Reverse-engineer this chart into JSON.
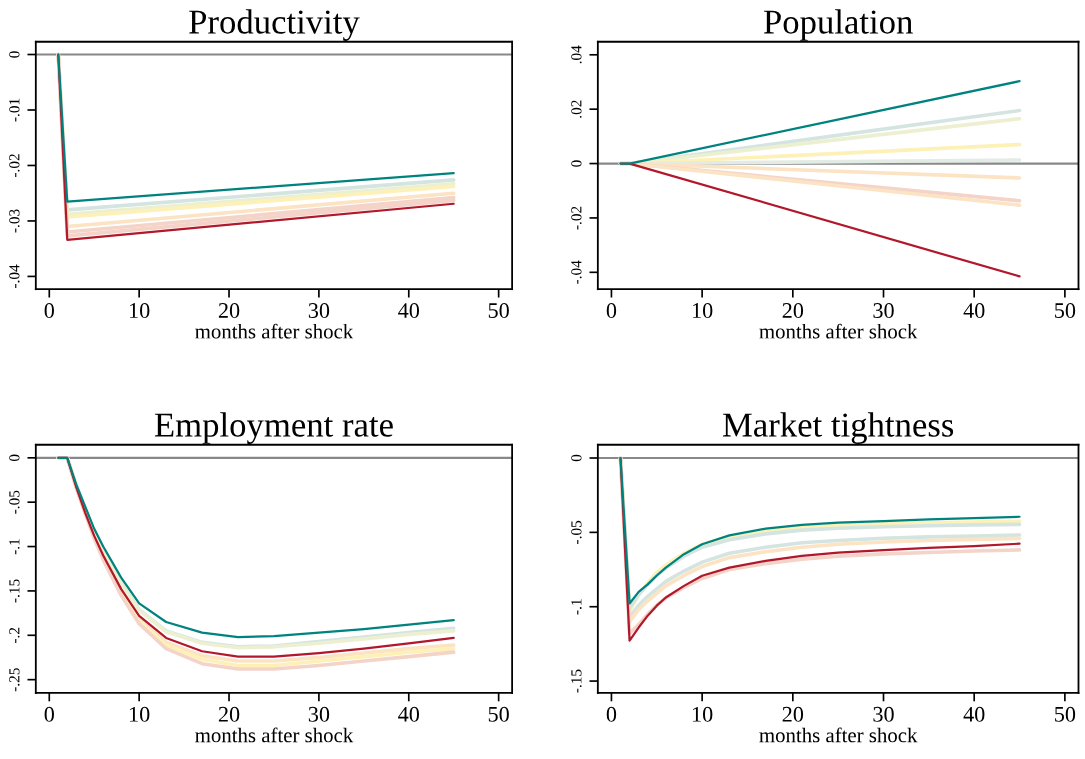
{
  "chart_data": [
    {
      "type": "line",
      "title": "Productivity",
      "xlabel": "months after shock",
      "xlim": [
        -1.5,
        51.5
      ],
      "xticks": [
        0,
        10,
        20,
        30,
        40,
        50
      ],
      "ylim": [
        -0.0423,
        0.0023
      ],
      "yticks": [
        0,
        {
          "value": -0.01,
          "label": "-.01"
        },
        {
          "value": -0.02,
          "label": "-.02"
        },
        {
          "value": -0.03,
          "label": "-.03"
        },
        {
          "value": -0.04,
          "label": "-.04"
        }
      ],
      "ref_lines": [
        {
          "axis": "y",
          "value": 0,
          "label": null,
          "color": "#888888"
        }
      ],
      "series": [
        {
          "color": "#d4e4e0",
          "x": [
            1,
            2,
            45
          ],
          "values": [
            0,
            -0.028,
            -0.0226
          ]
        },
        {
          "color": "#edf0d0",
          "x": [
            1,
            2,
            45
          ],
          "values": [
            0,
            -0.0288,
            -0.0233
          ]
        },
        {
          "color": "#fdf1b8",
          "x": [
            1,
            2,
            45
          ],
          "values": [
            0,
            -0.0293,
            -0.0238
          ]
        },
        {
          "color": "#fbe3c3",
          "x": [
            1,
            2,
            45
          ],
          "values": [
            0,
            -0.031,
            -0.025
          ]
        },
        {
          "color": "#f4d3c8",
          "x": [
            1,
            2,
            45
          ],
          "values": [
            0,
            -0.032,
            -0.0258
          ]
        },
        {
          "color": "#f4d3c8",
          "x": [
            1,
            2,
            45
          ],
          "values": [
            0,
            -0.0327,
            -0.0263
          ]
        },
        {
          "color": "#b2182b",
          "x": [
            1,
            2,
            45
          ],
          "values": [
            0,
            -0.0334,
            -0.0269
          ]
        },
        {
          "color": "#00837f",
          "x": [
            1,
            2,
            45
          ],
          "values": [
            0,
            -0.0265,
            -0.0214
          ]
        }
      ]
    },
    {
      "type": "line",
      "title": "Population",
      "xlabel": "months after shock",
      "xlim": [
        -1.5,
        51.5
      ],
      "xticks": [
        0,
        10,
        20,
        30,
        40,
        50
      ],
      "ylim": [
        -0.0462,
        0.0448
      ],
      "yticks": [
        {
          "value": -0.04,
          "label": "-.04"
        },
        {
          "value": -0.02,
          "label": "-.02"
        },
        0,
        {
          "value": 0.02,
          "label": ".02"
        },
        {
          "value": 0.04,
          "label": ".04"
        }
      ],
      "ref_lines": [
        {
          "axis": "y",
          "value": 0,
          "label": null,
          "color": "#888888"
        }
      ],
      "series": [
        {
          "color": "#d4e4e0",
          "x": [
            1,
            2,
            45
          ],
          "values": [
            0,
            0,
            0.0195
          ]
        },
        {
          "color": "#edf0d0",
          "x": [
            1,
            2,
            45
          ],
          "values": [
            0,
            0,
            0.0165
          ]
        },
        {
          "color": "#fdf1b8",
          "x": [
            1,
            2,
            45
          ],
          "values": [
            0,
            0,
            0.007
          ]
        },
        {
          "color": "#e3ece4",
          "x": [
            1,
            2,
            45
          ],
          "values": [
            0,
            0,
            0.0013
          ]
        },
        {
          "color": "#fbe3c3",
          "x": [
            1,
            2,
            45
          ],
          "values": [
            0,
            0,
            -0.0053
          ]
        },
        {
          "color": "#f4d3c8",
          "x": [
            1,
            2,
            45
          ],
          "values": [
            0,
            0,
            -0.0137
          ]
        },
        {
          "color": "#fbe3c3",
          "x": [
            1,
            2,
            45
          ],
          "values": [
            0,
            0,
            -0.0153
          ]
        },
        {
          "color": "#b2182b",
          "x": [
            1,
            2,
            45
          ],
          "values": [
            0,
            0,
            -0.0415
          ]
        },
        {
          "color": "#00837f",
          "x": [
            1,
            2,
            45
          ],
          "values": [
            0,
            0,
            0.0303
          ]
        }
      ]
    },
    {
      "type": "line",
      "title": "Employment rate",
      "xlabel": "months after shock",
      "xlim": [
        -1.5,
        51.5
      ],
      "xticks": [
        0,
        10,
        20,
        30,
        40,
        50
      ],
      "ylim": [
        -0.265,
        0.0147
      ],
      "yticks": [
        {
          "value": -0.25,
          "label": "-.25"
        },
        {
          "value": -0.2,
          "label": "-.2"
        },
        {
          "value": -0.15,
          "label": "-.15"
        },
        {
          "value": -0.1,
          "label": "-.1"
        },
        {
          "value": -0.05,
          "label": "-.05"
        },
        0
      ],
      "ref_lines": [
        {
          "axis": "y",
          "value": 0,
          "label": null,
          "color": "#888888"
        }
      ],
      "x": [
        1,
        2,
        3,
        4,
        5,
        6,
        8,
        10,
        13,
        17,
        21,
        25,
        30,
        35,
        40,
        45
      ],
      "series": [
        {
          "color": "#d4e4e0",
          "values": [
            0,
            0,
            -0.031,
            -0.058,
            -0.084,
            -0.105,
            -0.141,
            -0.171,
            -0.195,
            -0.208,
            -0.213,
            -0.212,
            -0.207,
            -0.202,
            -0.197,
            -0.192
          ]
        },
        {
          "color": "#edf0d0",
          "values": [
            0,
            0,
            -0.031,
            -0.058,
            -0.085,
            -0.106,
            -0.142,
            -0.172,
            -0.196,
            -0.209,
            -0.214,
            -0.213,
            -0.209,
            -0.204,
            -0.199,
            -0.195
          ]
        },
        {
          "color": "#fbe3c3",
          "values": [
            0,
            0,
            -0.033,
            -0.062,
            -0.089,
            -0.112,
            -0.151,
            -0.182,
            -0.208,
            -0.223,
            -0.229,
            -0.229,
            -0.225,
            -0.22,
            -0.215,
            -0.211
          ]
        },
        {
          "color": "#fdf1b8",
          "values": [
            0,
            0,
            -0.033,
            -0.062,
            -0.089,
            -0.113,
            -0.152,
            -0.184,
            -0.211,
            -0.227,
            -0.234,
            -0.234,
            -0.229,
            -0.224,
            -0.219,
            -0.215
          ]
        },
        {
          "color": "#f4d3c8",
          "values": [
            0,
            0,
            -0.034,
            -0.063,
            -0.091,
            -0.115,
            -0.155,
            -0.187,
            -0.215,
            -0.232,
            -0.238,
            -0.238,
            -0.234,
            -0.229,
            -0.224,
            -0.219
          ]
        },
        {
          "color": "#b2182b",
          "values": [
            0,
            0,
            -0.033,
            -0.062,
            -0.088,
            -0.11,
            -0.148,
            -0.178,
            -0.203,
            -0.218,
            -0.224,
            -0.224,
            -0.22,
            -0.215,
            -0.209,
            -0.203
          ]
        },
        {
          "color": "#00837f",
          "values": [
            0,
            0,
            -0.03,
            -0.055,
            -0.08,
            -0.1,
            -0.135,
            -0.164,
            -0.185,
            -0.197,
            -0.202,
            -0.201,
            -0.197,
            -0.193,
            -0.188,
            -0.183
          ]
        }
      ]
    },
    {
      "type": "line",
      "title": "Market tightness",
      "xlabel": "months after shock",
      "xlim": [
        -1.5,
        51.5
      ],
      "xticks": [
        0,
        10,
        20,
        30,
        40,
        50
      ],
      "ylim": [
        -0.158,
        0.0089
      ],
      "yticks": [
        {
          "value": -0.15,
          "label": "-.15"
        },
        {
          "value": -0.1,
          "label": "-.1"
        },
        {
          "value": -0.05,
          "label": "-.05"
        },
        0
      ],
      "ref_lines": [
        {
          "axis": "y",
          "value": 0,
          "label": null,
          "color": "#888888"
        }
      ],
      "x": [
        1,
        2,
        3,
        4,
        5,
        6,
        8,
        10,
        13,
        17,
        21,
        25,
        30,
        35,
        40,
        45
      ],
      "series": [
        {
          "color": "#fdf1b8",
          "values": [
            0,
            -0.103,
            -0.092,
            -0.084,
            -0.077,
            -0.072,
            -0.064,
            -0.058,
            -0.053,
            -0.049,
            -0.0465,
            -0.0452,
            -0.0442,
            -0.0436,
            -0.043,
            -0.0425
          ]
        },
        {
          "color": "#d4e4e0",
          "values": [
            0,
            -0.101,
            -0.092,
            -0.085,
            -0.079,
            -0.074,
            -0.066,
            -0.06,
            -0.055,
            -0.051,
            -0.0485,
            -0.0472,
            -0.0462,
            -0.0456,
            -0.045,
            -0.0446
          ]
        },
        {
          "color": "#d4e4e0",
          "values": [
            0,
            -0.107,
            -0.099,
            -0.093,
            -0.088,
            -0.083,
            -0.076,
            -0.07,
            -0.064,
            -0.06,
            -0.057,
            -0.0555,
            -0.054,
            -0.053,
            -0.0525,
            -0.0518
          ]
        },
        {
          "color": "#fbe3c3",
          "values": [
            0,
            -0.11,
            -0.102,
            -0.096,
            -0.091,
            -0.086,
            -0.079,
            -0.073,
            -0.067,
            -0.063,
            -0.06,
            -0.058,
            -0.0565,
            -0.0555,
            -0.0547,
            -0.054
          ]
        },
        {
          "color": "#f4d3c8",
          "values": [
            0,
            -0.118,
            -0.112,
            -0.105,
            -0.099,
            -0.094,
            -0.087,
            -0.081,
            -0.075,
            -0.071,
            -0.068,
            -0.066,
            -0.0645,
            -0.0635,
            -0.0625,
            -0.0618
          ]
        },
        {
          "color": "#b2182b",
          "values": [
            0,
            -0.1228,
            -0.114,
            -0.106,
            -0.0993,
            -0.0938,
            -0.086,
            -0.0792,
            -0.0737,
            -0.0692,
            -0.0658,
            -0.0636,
            -0.062,
            -0.0605,
            -0.0592,
            -0.0576
          ]
        },
        {
          "color": "#00837f",
          "values": [
            0,
            -0.0978,
            -0.09,
            -0.085,
            -0.079,
            -0.0737,
            -0.0647,
            -0.058,
            -0.052,
            -0.0475,
            -0.045,
            -0.0435,
            -0.0424,
            -0.0413,
            -0.0404,
            -0.0395
          ]
        }
      ]
    }
  ]
}
